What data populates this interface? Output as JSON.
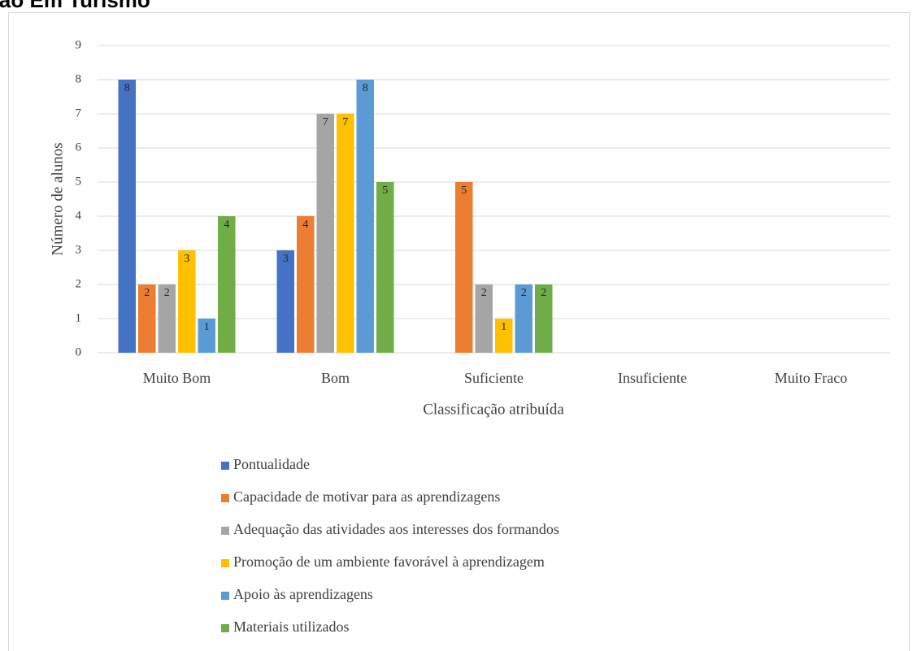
{
  "chart_data": {
    "type": "bar",
    "header": "ação Em Turismo",
    "xlabel": "Classificação atribuída",
    "ylabel": "Número de alunos",
    "categories": [
      "Muito Bom",
      "Bom",
      "Suficiente",
      "Insuficiente",
      "Muito Fraco"
    ],
    "series": [
      {
        "name": "Pontualidade",
        "color": "#4472c4",
        "values": [
          8,
          3,
          null,
          null,
          null
        ]
      },
      {
        "name": "Capacidade de motivar para as aprendizagens",
        "color": "#ed7d31",
        "values": [
          2,
          4,
          5,
          null,
          null
        ]
      },
      {
        "name": "Adequação das atividades aos interesses dos formandos",
        "color": "#a5a5a5",
        "values": [
          2,
          7,
          2,
          null,
          null
        ]
      },
      {
        "name": "Promoção de um ambiente favorável à aprendizagem",
        "color": "#ffc000",
        "values": [
          3,
          7,
          1,
          null,
          null
        ]
      },
      {
        "name": "Apoio às aprendizagens",
        "color": "#5b9bd5",
        "values": [
          1,
          8,
          2,
          null,
          null
        ]
      },
      {
        "name": "Materiais utilizados",
        "color": "#70ad47",
        "values": [
          4,
          5,
          2,
          null,
          null
        ]
      }
    ],
    "ylim": [
      0,
      9
    ],
    "yticks": [
      0,
      1,
      2,
      3,
      4,
      5,
      6,
      7,
      8,
      9
    ],
    "grid": true,
    "legend": "bottom"
  }
}
